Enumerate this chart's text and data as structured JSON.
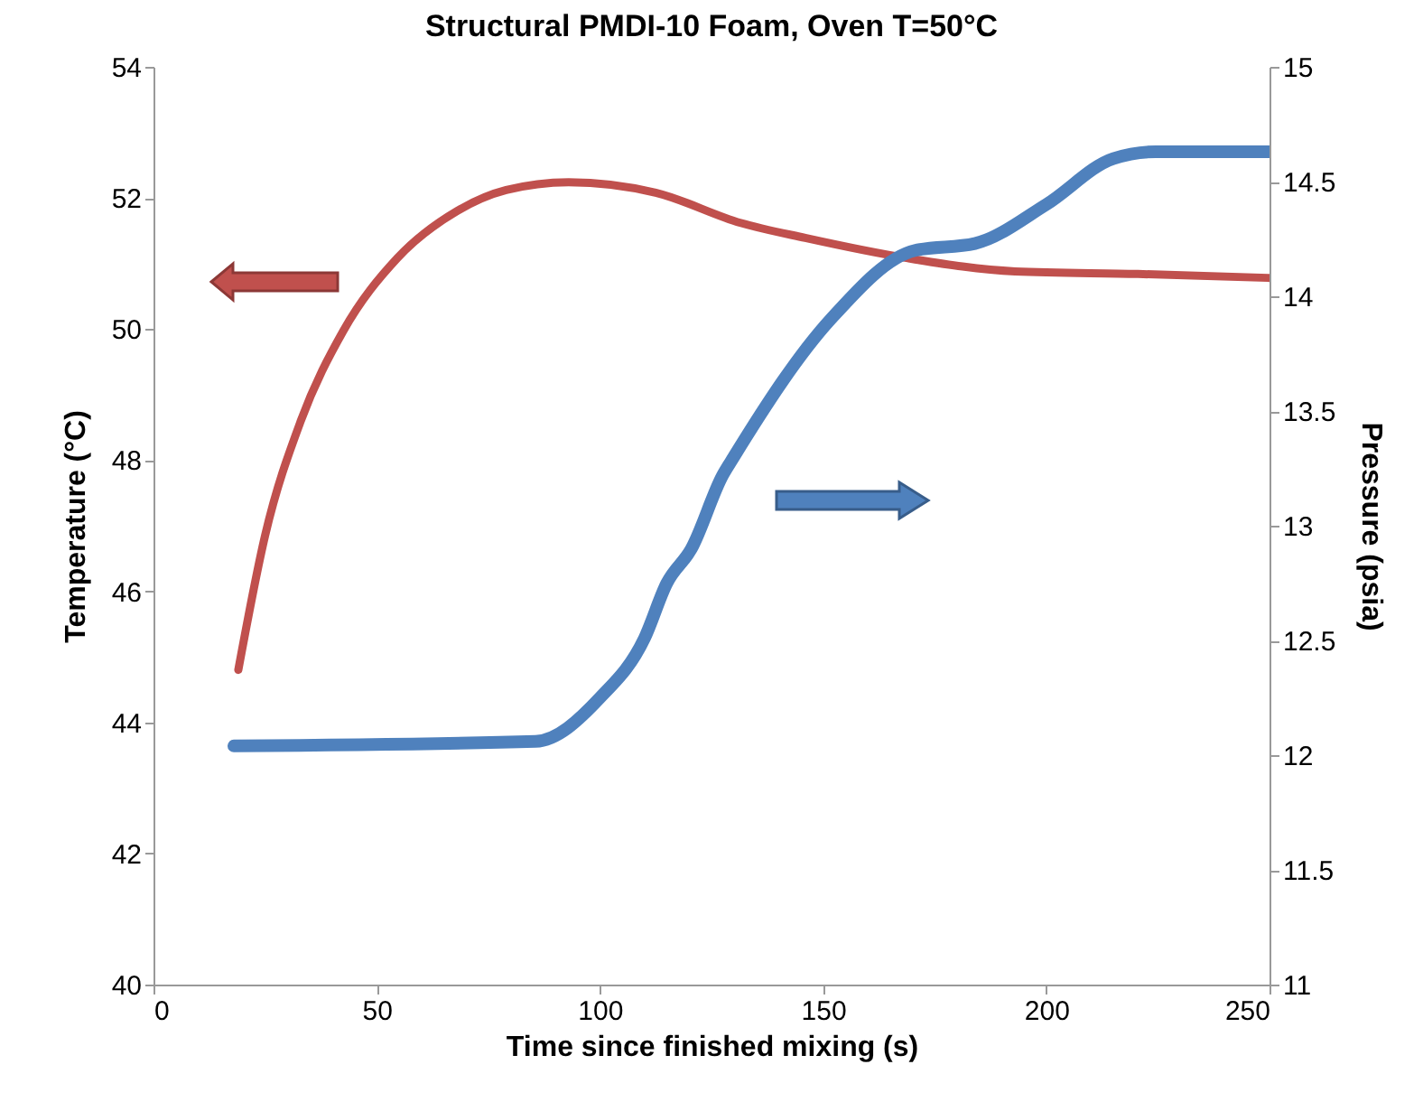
{
  "chart_data": {
    "type": "line",
    "title": "Structural PMDI-10 Foam, Oven T=50°C",
    "xlabel": "Time since finished mixing (s)",
    "ylabel": "Temperature (°C)",
    "y2label": "Pressure (psia)",
    "series": [
      {
        "color": "#c0504d",
        "x": [
          19,
          25,
          33,
          42.5,
          54.6,
          68,
          79,
          93,
          112.5,
          131.5,
          146,
          169,
          193,
          220.5,
          250
        ],
        "values": [
          44.8,
          46.85,
          48.6,
          49.97,
          51.08,
          51.8,
          52.12,
          52.24,
          52.08,
          51.62,
          51.39,
          51.08,
          50.88,
          50.84,
          50.78
        ]
      },
      {
        "color": "#4f81bd",
        "axis": "y2",
        "x": [
          18,
          85.6,
          100,
          110,
          115,
          120.5,
          127.5,
          130,
          151.7,
          170.6,
          184,
          200,
          215,
          224.5,
          250
        ],
        "values": [
          12.04,
          12.06,
          12.25,
          12.51,
          12.75,
          12.9,
          13.22,
          13.3,
          13.9,
          14.2,
          14.23,
          14.4,
          14.6,
          14.63,
          14.63
        ]
      }
    ],
    "xlim": [
      0,
      250
    ],
    "xticks": [
      0,
      50,
      100,
      150,
      200,
      250
    ],
    "ylim": [
      40,
      54
    ],
    "yticks": [
      40,
      42,
      44,
      46,
      48,
      50,
      52,
      54
    ],
    "y2lim": [
      11,
      15
    ],
    "y2ticks": [
      11,
      11.5,
      12,
      12.5,
      13,
      13.5,
      14,
      14.5,
      15
    ],
    "grid": false,
    "marker": "none",
    "line_style": "solid"
  }
}
